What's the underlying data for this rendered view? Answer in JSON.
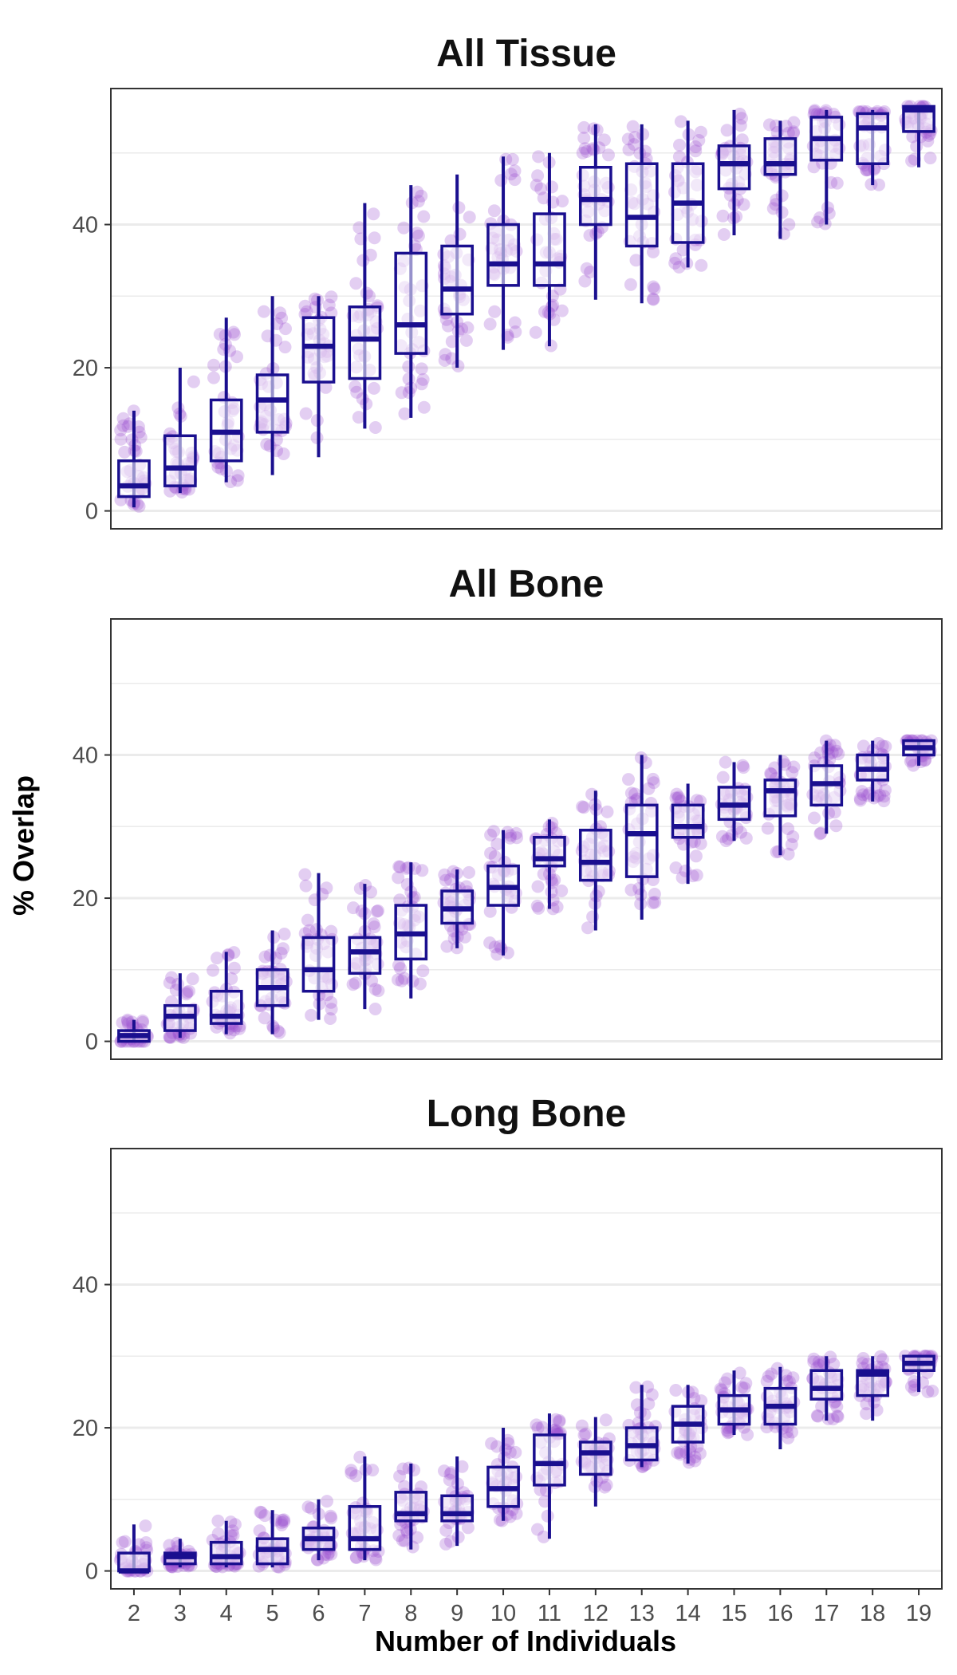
{
  "chart_data": {
    "type": "boxplot",
    "xlabel": "Number of Individuals",
    "ylabel": "% Overlap",
    "ylim": [
      -2.5,
      59
    ],
    "yticks": [
      0,
      20,
      40
    ],
    "grid": true,
    "colors": {
      "box": "#1a0f8f",
      "points": "#9b4fd0",
      "grid": "#ebebeb",
      "panel_border": "#333333"
    },
    "categories": [
      "2",
      "3",
      "4",
      "5",
      "6",
      "7",
      "8",
      "9",
      "10",
      "11",
      "12",
      "13",
      "14",
      "15",
      "16",
      "17",
      "18",
      "19"
    ],
    "panels": [
      {
        "title": "All Tissue",
        "boxes": [
          {
            "x": "2",
            "min": 0.5,
            "q1": 2,
            "median": 3.5,
            "q3": 7,
            "max": 14
          },
          {
            "x": "3",
            "min": 2.5,
            "q1": 3.5,
            "median": 6,
            "q3": 10.5,
            "max": 20
          },
          {
            "x": "4",
            "min": 4,
            "q1": 7,
            "median": 11,
            "q3": 15.5,
            "max": 27
          },
          {
            "x": "5",
            "min": 5,
            "q1": 11,
            "median": 15.5,
            "q3": 19,
            "max": 30
          },
          {
            "x": "6",
            "min": 7.5,
            "q1": 18,
            "median": 23,
            "q3": 27,
            "max": 30
          },
          {
            "x": "7",
            "min": 11.5,
            "q1": 18.5,
            "median": 24,
            "q3": 28.5,
            "max": 43
          },
          {
            "x": "8",
            "min": 13,
            "q1": 22,
            "median": 26,
            "q3": 36,
            "max": 45.5
          },
          {
            "x": "9",
            "min": 20,
            "q1": 27.5,
            "median": 31,
            "q3": 37,
            "max": 47
          },
          {
            "x": "10",
            "min": 22.5,
            "q1": 31.5,
            "median": 34.5,
            "q3": 40,
            "max": 49.5
          },
          {
            "x": "11",
            "min": 23,
            "q1": 31.5,
            "median": 34.5,
            "q3": 41.5,
            "max": 50
          },
          {
            "x": "12",
            "min": 29.5,
            "q1": 40,
            "median": 43.5,
            "q3": 48,
            "max": 54
          },
          {
            "x": "13",
            "min": 29,
            "q1": 37,
            "median": 41,
            "q3": 48.5,
            "max": 54
          },
          {
            "x": "14",
            "min": 34,
            "q1": 37.5,
            "median": 43,
            "q3": 48.5,
            "max": 54.5
          },
          {
            "x": "15",
            "min": 38.5,
            "q1": 45,
            "median": 48.5,
            "q3": 51,
            "max": 56
          },
          {
            "x": "16",
            "min": 38,
            "q1": 47,
            "median": 48.5,
            "q3": 52,
            "max": 54.5
          },
          {
            "x": "17",
            "min": 40,
            "q1": 49,
            "median": 52,
            "q3": 55,
            "max": 56
          },
          {
            "x": "18",
            "min": 45.5,
            "q1": 48.5,
            "median": 53.5,
            "q3": 55.5,
            "max": 56
          },
          {
            "x": "19",
            "min": 48,
            "q1": 53,
            "median": 56,
            "q3": 56.5,
            "max": 56.5
          }
        ]
      },
      {
        "title": "All Bone",
        "boxes": [
          {
            "x": "2",
            "min": 0,
            "q1": 0,
            "median": 0.8,
            "q3": 1.5,
            "max": 3
          },
          {
            "x": "3",
            "min": 0.5,
            "q1": 1.5,
            "median": 3.5,
            "q3": 5,
            "max": 9.5
          },
          {
            "x": "4",
            "min": 1,
            "q1": 2.5,
            "median": 3.5,
            "q3": 7,
            "max": 12.5
          },
          {
            "x": "5",
            "min": 1,
            "q1": 5,
            "median": 7.5,
            "q3": 10,
            "max": 15.5
          },
          {
            "x": "6",
            "min": 3,
            "q1": 7,
            "median": 10,
            "q3": 14.5,
            "max": 23.5
          },
          {
            "x": "7",
            "min": 4.5,
            "q1": 9.5,
            "median": 12.5,
            "q3": 14.5,
            "max": 22
          },
          {
            "x": "8",
            "min": 6,
            "q1": 11.5,
            "median": 15,
            "q3": 19,
            "max": 25
          },
          {
            "x": "9",
            "min": 13,
            "q1": 16.5,
            "median": 18.5,
            "q3": 21,
            "max": 24
          },
          {
            "x": "10",
            "min": 12,
            "q1": 19,
            "median": 21.5,
            "q3": 24.5,
            "max": 29.5
          },
          {
            "x": "11",
            "min": 18.5,
            "q1": 24.5,
            "median": 25.5,
            "q3": 28.5,
            "max": 31
          },
          {
            "x": "12",
            "min": 15.5,
            "q1": 22.5,
            "median": 25,
            "q3": 29.5,
            "max": 35
          },
          {
            "x": "13",
            "min": 17,
            "q1": 23,
            "median": 29,
            "q3": 33,
            "max": 40
          },
          {
            "x": "14",
            "min": 22,
            "q1": 28.5,
            "median": 30,
            "q3": 33,
            "max": 36
          },
          {
            "x": "15",
            "min": 28,
            "q1": 31,
            "median": 33,
            "q3": 35.5,
            "max": 39
          },
          {
            "x": "16",
            "min": 26,
            "q1": 31.5,
            "median": 35,
            "q3": 36.5,
            "max": 40
          },
          {
            "x": "17",
            "min": 29,
            "q1": 33,
            "median": 36,
            "q3": 38.5,
            "max": 42
          },
          {
            "x": "18",
            "min": 33.5,
            "q1": 36.5,
            "median": 38,
            "q3": 40,
            "max": 42
          },
          {
            "x": "19",
            "min": 38.5,
            "q1": 40,
            "median": 41,
            "q3": 42,
            "max": 42
          }
        ]
      },
      {
        "title": "Long Bone",
        "boxes": [
          {
            "x": "2",
            "min": 0,
            "q1": 0,
            "median": 0,
            "q3": 2.5,
            "max": 6.5
          },
          {
            "x": "3",
            "min": 0.5,
            "q1": 1,
            "median": 2,
            "q3": 2.5,
            "max": 4.5
          },
          {
            "x": "4",
            "min": 0.5,
            "q1": 1,
            "median": 2,
            "q3": 4,
            "max": 7
          },
          {
            "x": "5",
            "min": 0.5,
            "q1": 1,
            "median": 3,
            "q3": 4.5,
            "max": 8.5
          },
          {
            "x": "6",
            "min": 1.5,
            "q1": 3,
            "median": 4.5,
            "q3": 6,
            "max": 10
          },
          {
            "x": "7",
            "min": 1.5,
            "q1": 3,
            "median": 4.5,
            "q3": 9,
            "max": 16
          },
          {
            "x": "8",
            "min": 3,
            "q1": 7,
            "median": 8,
            "q3": 11,
            "max": 15
          },
          {
            "x": "9",
            "min": 3.5,
            "q1": 7,
            "median": 8,
            "q3": 10.5,
            "max": 16
          },
          {
            "x": "10",
            "min": 7,
            "q1": 9,
            "median": 11.5,
            "q3": 14.5,
            "max": 20
          },
          {
            "x": "11",
            "min": 4.5,
            "q1": 12,
            "median": 15,
            "q3": 19,
            "max": 22
          },
          {
            "x": "12",
            "min": 9,
            "q1": 13.5,
            "median": 16.5,
            "q3": 18,
            "max": 21.5
          },
          {
            "x": "13",
            "min": 14.5,
            "q1": 15.5,
            "median": 17.5,
            "q3": 20,
            "max": 26
          },
          {
            "x": "14",
            "min": 15,
            "q1": 18,
            "median": 20.5,
            "q3": 23,
            "max": 26
          },
          {
            "x": "15",
            "min": 19,
            "q1": 20.5,
            "median": 22.5,
            "q3": 24.5,
            "max": 28
          },
          {
            "x": "16",
            "min": 17,
            "q1": 20.5,
            "median": 23,
            "q3": 25.5,
            "max": 28.5
          },
          {
            "x": "17",
            "min": 21,
            "q1": 24,
            "median": 25.5,
            "q3": 28,
            "max": 30
          },
          {
            "x": "18",
            "min": 21,
            "q1": 24.5,
            "median": 27.5,
            "q3": 28,
            "max": 30
          },
          {
            "x": "19",
            "min": 25,
            "q1": 28,
            "median": 29,
            "q3": 30,
            "max": 30
          }
        ]
      }
    ]
  }
}
